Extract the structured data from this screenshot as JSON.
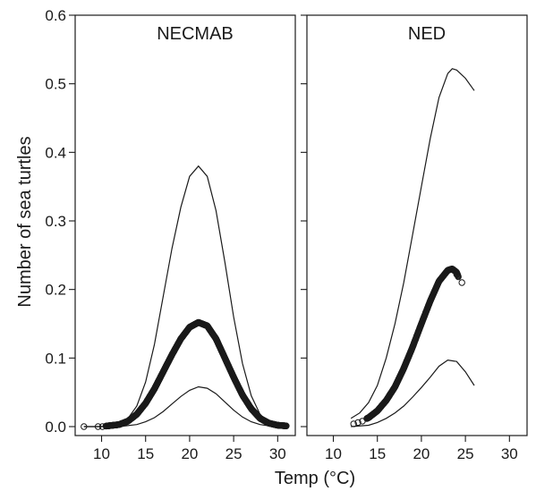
{
  "chart_data": {
    "type": "scatter",
    "ylabel": "Number of sea turtles",
    "xlabel": "Temp (°C)",
    "ylim": [
      0,
      0.6
    ],
    "yticks": [
      0.0,
      0.1,
      0.2,
      0.3,
      0.4,
      0.5,
      0.6
    ],
    "ytick_labels": [
      "0.0",
      "0.1",
      "0.2",
      "0.3",
      "0.4",
      "0.5",
      "0.6"
    ],
    "grid": false,
    "panels": [
      {
        "title": "NECMAB",
        "xlim": [
          7,
          32
        ],
        "xticks": [
          10,
          15,
          20,
          25,
          30
        ],
        "xtick_labels": [
          "10",
          "15",
          "20",
          "25",
          "30"
        ],
        "upper": [
          [
            8,
            0.0
          ],
          [
            10,
            0.0
          ],
          [
            12,
            0.004
          ],
          [
            13,
            0.012
          ],
          [
            14,
            0.03
          ],
          [
            15,
            0.065
          ],
          [
            16,
            0.12
          ],
          [
            17,
            0.19
          ],
          [
            18,
            0.26
          ],
          [
            19,
            0.32
          ],
          [
            20,
            0.365
          ],
          [
            21,
            0.38
          ],
          [
            22,
            0.365
          ],
          [
            23,
            0.315
          ],
          [
            24,
            0.24
          ],
          [
            25,
            0.16
          ],
          [
            26,
            0.092
          ],
          [
            27,
            0.045
          ],
          [
            28,
            0.018
          ],
          [
            29,
            0.006
          ],
          [
            30,
            0.002
          ],
          [
            31,
            0.0
          ]
        ],
        "lower": [
          [
            8,
            0.0
          ],
          [
            12,
            0.0
          ],
          [
            14,
            0.003
          ],
          [
            15,
            0.007
          ],
          [
            16,
            0.013
          ],
          [
            17,
            0.022
          ],
          [
            18,
            0.033
          ],
          [
            19,
            0.044
          ],
          [
            20,
            0.053
          ],
          [
            21,
            0.058
          ],
          [
            22,
            0.056
          ],
          [
            23,
            0.048
          ],
          [
            24,
            0.036
          ],
          [
            25,
            0.024
          ],
          [
            26,
            0.014
          ],
          [
            27,
            0.007
          ],
          [
            28,
            0.003
          ],
          [
            29,
            0.001
          ],
          [
            31,
            0.0
          ]
        ],
        "fitted": [
          [
            8,
            0.0
          ],
          [
            10,
            0.0
          ],
          [
            12,
            0.003
          ],
          [
            13,
            0.008
          ],
          [
            14,
            0.018
          ],
          [
            15,
            0.034
          ],
          [
            16,
            0.055
          ],
          [
            17,
            0.08
          ],
          [
            18,
            0.105
          ],
          [
            19,
            0.128
          ],
          [
            20,
            0.145
          ],
          [
            21,
            0.152
          ],
          [
            22,
            0.147
          ],
          [
            23,
            0.128
          ],
          [
            24,
            0.1
          ],
          [
            25,
            0.072
          ],
          [
            26,
            0.046
          ],
          [
            27,
            0.026
          ],
          [
            28,
            0.012
          ],
          [
            29,
            0.005
          ],
          [
            30,
            0.002
          ],
          [
            31,
            0.001
          ]
        ],
        "fitted_range": [
          10.5,
          31
        ],
        "isolated_points": [
          [
            8,
            0.0
          ],
          [
            9.6,
            0.0
          ],
          [
            10.1,
            0.0
          ]
        ]
      },
      {
        "title": "NED",
        "xlim": [
          7,
          32
        ],
        "xticks": [
          10,
          15,
          20,
          25,
          30
        ],
        "xtick_labels": [
          "10",
          "15",
          "20",
          "25",
          "30"
        ],
        "upper": [
          [
            12,
            0.012
          ],
          [
            13,
            0.02
          ],
          [
            14,
            0.035
          ],
          [
            15,
            0.06
          ],
          [
            16,
            0.1
          ],
          [
            17,
            0.15
          ],
          [
            18,
            0.21
          ],
          [
            19,
            0.28
          ],
          [
            20,
            0.35
          ],
          [
            21,
            0.42
          ],
          [
            22,
            0.48
          ],
          [
            23,
            0.515
          ],
          [
            23.5,
            0.522
          ],
          [
            24,
            0.52
          ],
          [
            25,
            0.508
          ],
          [
            26,
            0.49
          ]
        ],
        "lower": [
          [
            12,
            0.0
          ],
          [
            14,
            0.002
          ],
          [
            15,
            0.006
          ],
          [
            16,
            0.012
          ],
          [
            17,
            0.02
          ],
          [
            18,
            0.03
          ],
          [
            19,
            0.043
          ],
          [
            20,
            0.057
          ],
          [
            21,
            0.072
          ],
          [
            22,
            0.088
          ],
          [
            23,
            0.097
          ],
          [
            24,
            0.095
          ],
          [
            25,
            0.08
          ],
          [
            26,
            0.06
          ]
        ],
        "fitted": [
          [
            12,
            0.003
          ],
          [
            13,
            0.007
          ],
          [
            14,
            0.013
          ],
          [
            15,
            0.023
          ],
          [
            16,
            0.038
          ],
          [
            17,
            0.058
          ],
          [
            18,
            0.085
          ],
          [
            19,
            0.116
          ],
          [
            20,
            0.15
          ],
          [
            21,
            0.183
          ],
          [
            22,
            0.212
          ],
          [
            23,
            0.228
          ],
          [
            23.5,
            0.23
          ],
          [
            24,
            0.225
          ],
          [
            24.3,
            0.215
          ],
          [
            24.5,
            0.205
          ]
        ],
        "fitted_range": [
          13.8,
          24.2
        ],
        "isolated_points": [
          [
            12.3,
            0.004
          ],
          [
            12.8,
            0.006
          ],
          [
            13.3,
            0.008
          ],
          [
            24.0,
            0.222
          ],
          [
            24.6,
            0.21
          ]
        ]
      }
    ]
  }
}
